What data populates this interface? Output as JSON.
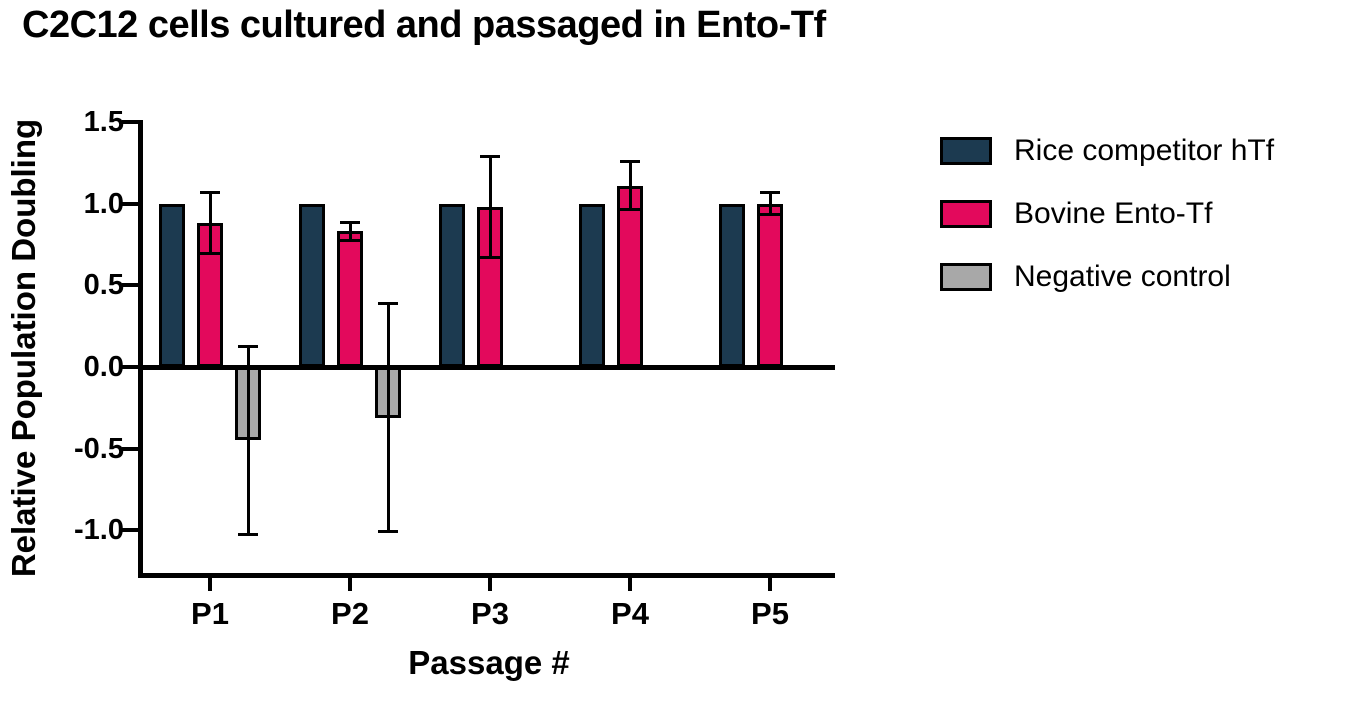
{
  "chart_data": {
    "type": "bar",
    "title": "C2C12 cells cultured and passaged in Ento-Tf",
    "xlabel": "Passage #",
    "ylabel": "Relative Population Doubling",
    "categories": [
      "P1",
      "P2",
      "P3",
      "P4",
      "P5"
    ],
    "series": [
      {
        "name": "Rice competitor hTf",
        "color": "#1c3a50",
        "values": [
          1.0,
          1.0,
          1.0,
          1.0,
          1.0
        ],
        "errors": null
      },
      {
        "name": "Bovine Ento-Tf",
        "color": "#e3095c",
        "values": [
          0.88,
          0.83,
          0.98,
          1.11,
          1.0
        ],
        "errors": [
          0.19,
          0.06,
          0.31,
          0.15,
          0.07
        ]
      },
      {
        "name": "Negative control",
        "color": "#a8a8a8",
        "values": [
          -0.45,
          -0.31,
          null,
          null,
          null
        ],
        "errors": [
          0.58,
          0.7,
          null,
          null,
          null
        ]
      }
    ],
    "ylim": [
      -1.27,
      1.5
    ],
    "yticks": [
      1.5,
      1.0,
      0.5,
      0.0,
      -0.5,
      -1.0
    ],
    "ytick_labels": [
      "1.5",
      "1.0",
      "0.5",
      "0.0",
      "-0.5",
      "-1.0"
    ],
    "grid": false,
    "legend_position": "right",
    "error_bar_style": "both-directions-with-caps",
    "axis_color": "#000000",
    "background_color": "#ffffff"
  }
}
